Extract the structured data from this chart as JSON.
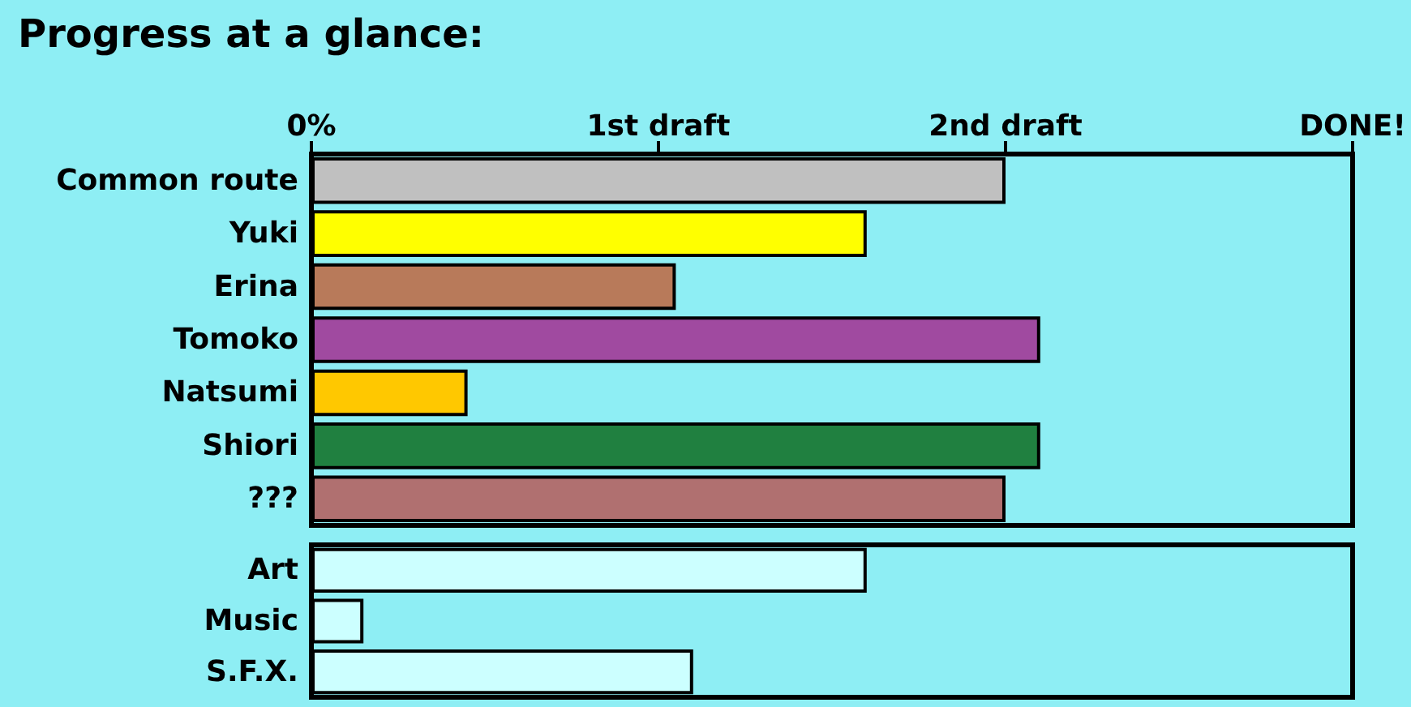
{
  "chart_data": [
    {
      "type": "bar",
      "title": "Progress at a glance:",
      "orientation": "horizontal",
      "categories": [
        "Common route",
        "Yuki",
        "Erina",
        "Tomoko",
        "Natsumi",
        "Shiori",
        "???"
      ],
      "values": [
        2.0,
        1.6,
        1.05,
        2.1,
        0.45,
        2.1,
        2.0
      ],
      "colors": [
        "#c0c0c0",
        "#ffff00",
        "#b87a5a",
        "#a04aa0",
        "#ffc800",
        "#208040",
        "#b07070"
      ],
      "xlim": [
        0,
        3
      ],
      "xticks": [
        {
          "value": 0,
          "label": "0%"
        },
        {
          "value": 1,
          "label": "1st draft"
        },
        {
          "value": 2,
          "label": "2nd draft"
        },
        {
          "value": 3,
          "label": "DONE!"
        }
      ],
      "grid": false
    },
    {
      "type": "bar",
      "orientation": "horizontal",
      "categories": [
        "Art",
        "Music",
        "S.F.X."
      ],
      "values": [
        1.6,
        0.15,
        1.1
      ],
      "colors": [
        "#ccffff",
        "#ccffff",
        "#ccffff"
      ],
      "xlim": [
        0,
        3
      ],
      "tick_labels": "y",
      "grid": false
    }
  ]
}
